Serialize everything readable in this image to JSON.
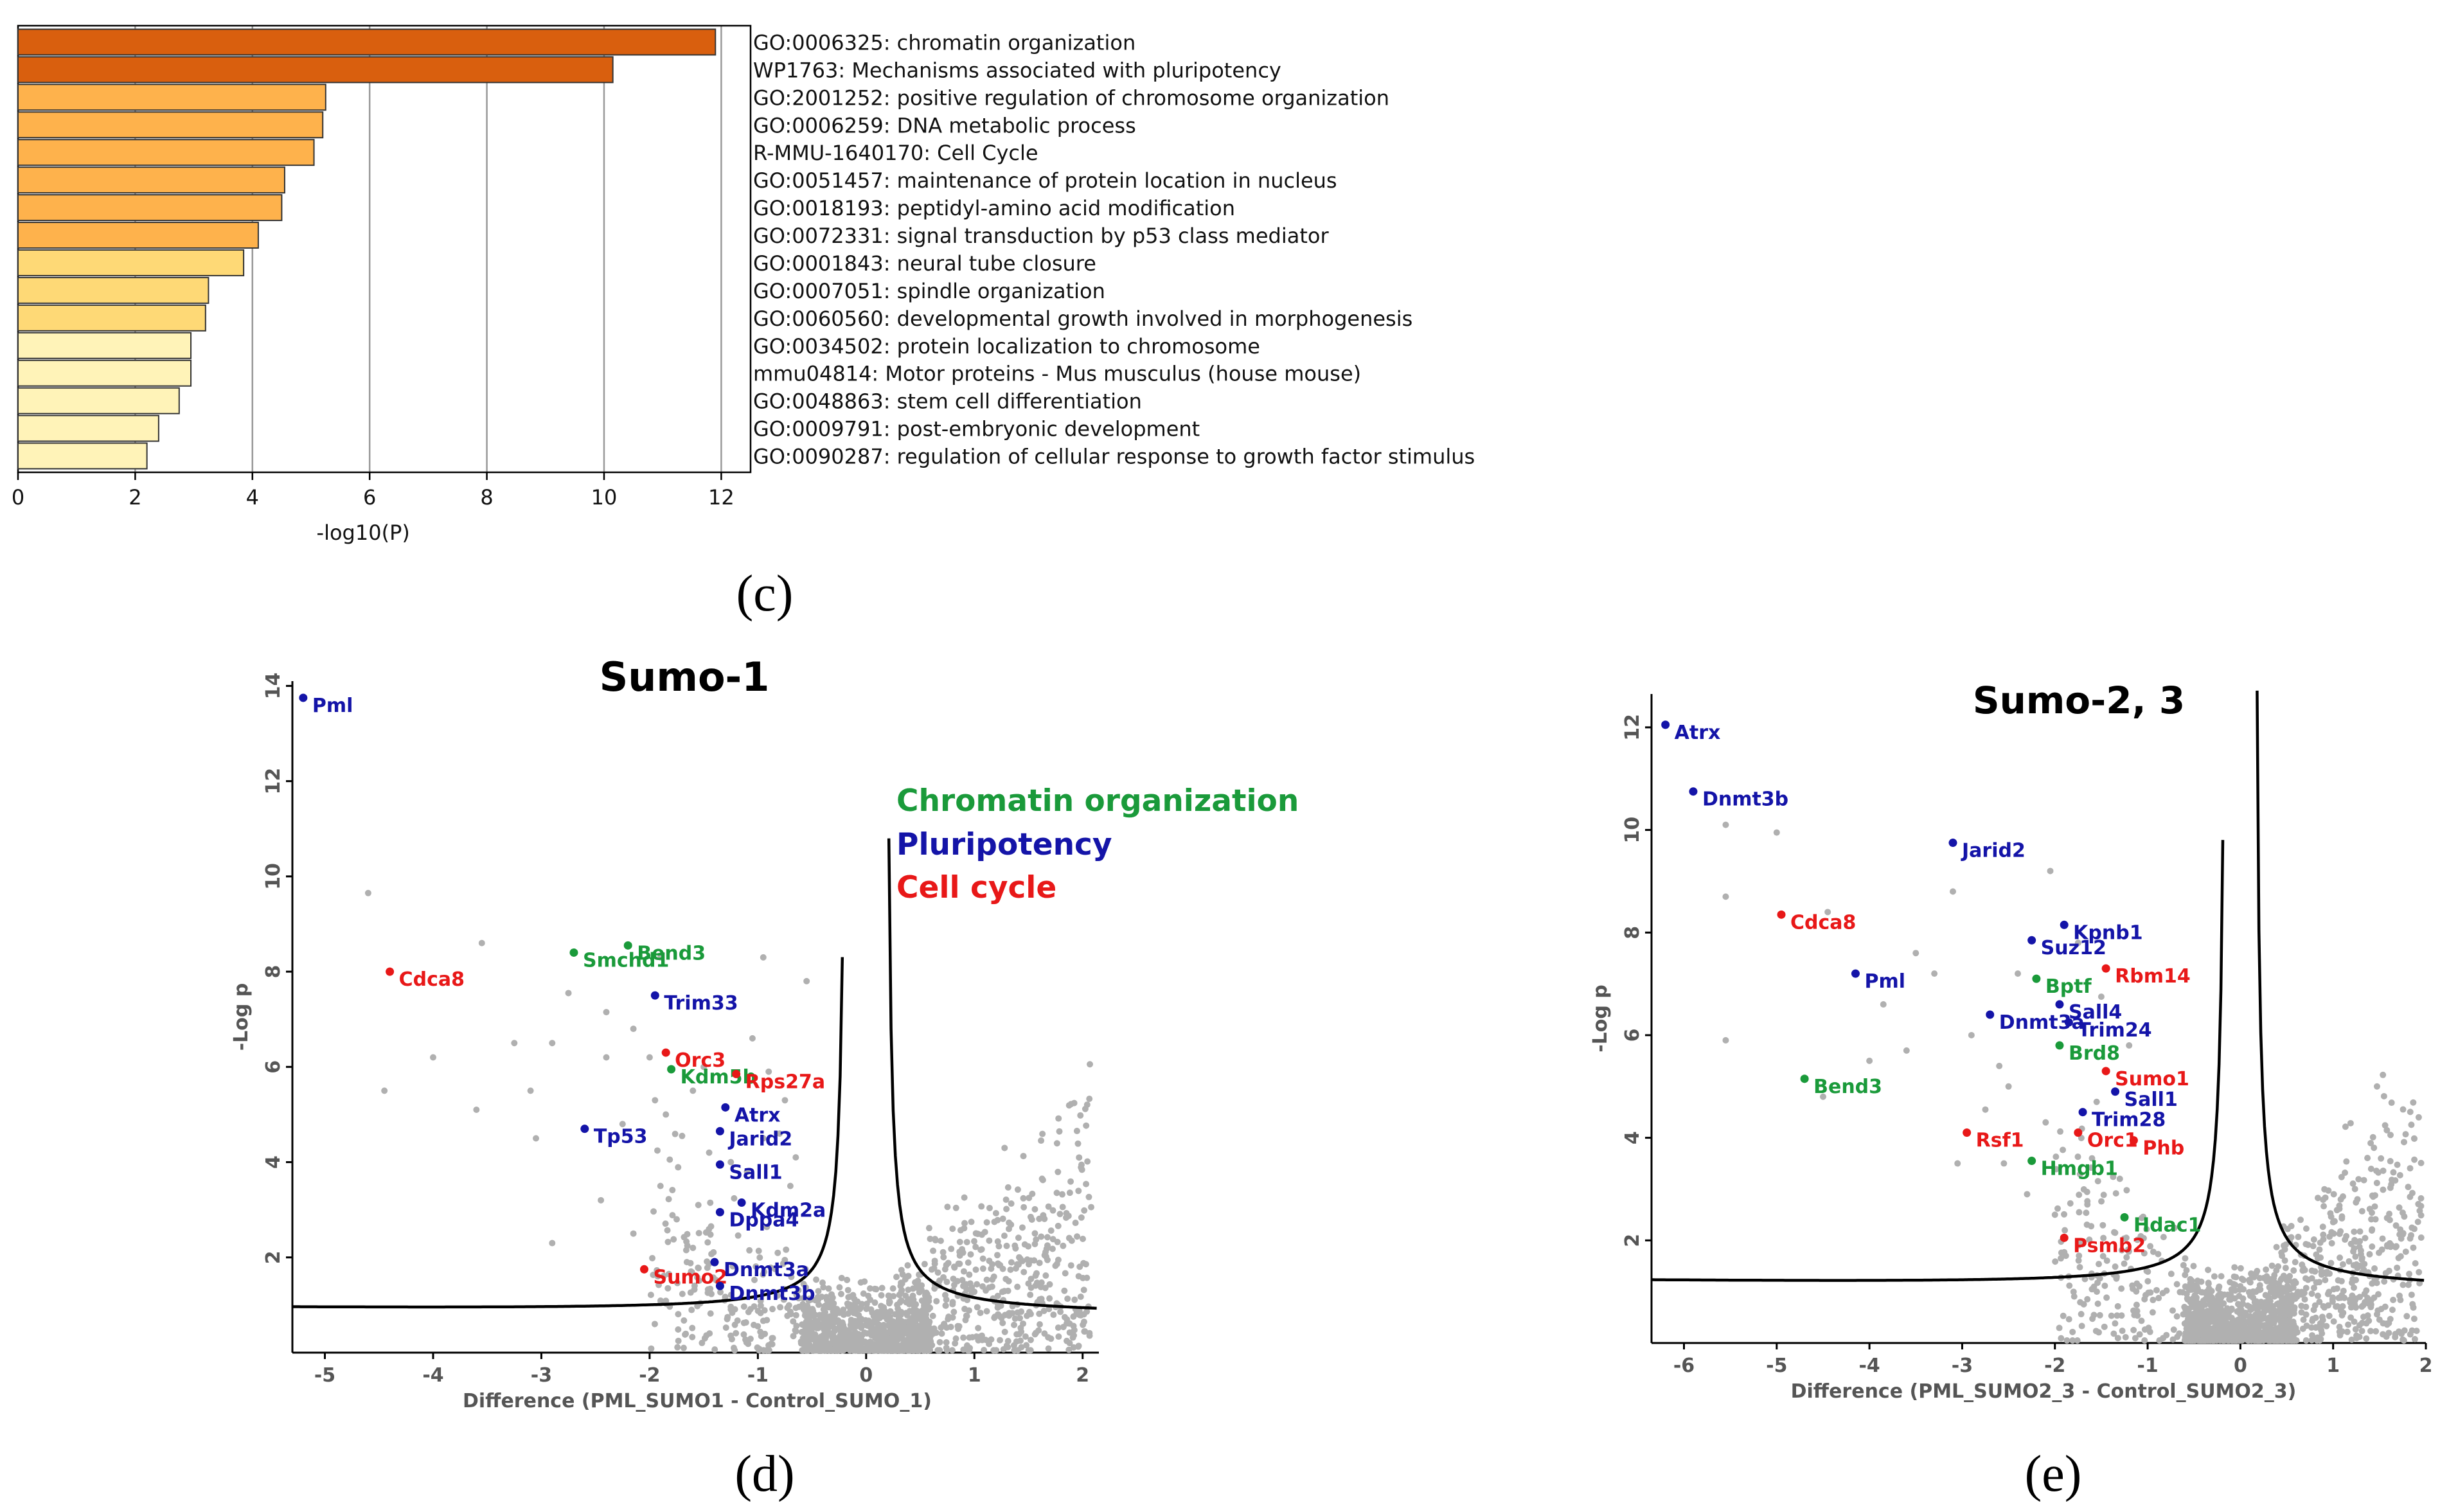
{
  "colors": {
    "bar_dark": "#D95F0E",
    "bar_mid": "#FEB24C",
    "bar_mid2": "#FED976",
    "bar_light": "#FFF3B8",
    "grid": "#9a9a9a",
    "green": "#1a9a3a",
    "blue": "#1414a8",
    "red": "#e81818",
    "gray_point": "#b0b0b0"
  },
  "chart_data": [
    {
      "id": "c",
      "type": "bar",
      "orientation": "horizontal",
      "panel_label": "(c)",
      "xlabel": "-log10(P)",
      "xlim": [
        0,
        12.5
      ],
      "xticks": [
        0,
        2,
        4,
        6,
        8,
        10,
        12
      ],
      "grid": true,
      "categories": [
        "GO:0006325: chromatin organization",
        "WP1763: Mechanisms associated with pluripotency",
        "GO:2001252: positive regulation of chromosome organization",
        "GO:0006259: DNA metabolic process",
        "R-MMU-1640170: Cell Cycle",
        "GO:0051457: maintenance of protein location in nucleus",
        "GO:0018193: peptidyl-amino acid modification",
        "GO:0072331: signal transduction by p53 class mediator",
        "GO:0001843: neural tube closure",
        "GO:0007051: spindle organization",
        "GO:0060560: developmental growth involved in morphogenesis",
        "GO:0034502: protein localization to chromosome",
        "mmu04814: Motor proteins - Mus musculus (house mouse)",
        "GO:0048863: stem cell differentiation",
        "GO:0009791: post-embryonic development",
        "GO:0090287: regulation of cellular response to growth factor stimulus"
      ],
      "values": [
        11.9,
        10.15,
        5.25,
        5.2,
        5.05,
        4.55,
        4.5,
        4.1,
        3.85,
        3.25,
        3.2,
        2.95,
        2.95,
        2.75,
        2.4,
        2.2
      ]
    },
    {
      "id": "d",
      "type": "scatter",
      "title": "Sumo-1",
      "panel_label": "(d)",
      "xlabel": "Difference (PML_SUMO1 - Control_SUMO_1)",
      "ylabel": "-Log p",
      "xlim": [
        -5.3,
        2.15
      ],
      "ylim": [
        0,
        14.1
      ],
      "xticks": [
        -5,
        -4,
        -3,
        -2,
        -1,
        0,
        1,
        2
      ],
      "yticks": [
        2,
        4,
        6,
        8,
        10,
        12,
        14
      ],
      "legend": [
        "Chromatin organization",
        "Pluripotency",
        "Cell cycle"
      ],
      "legend_cats": [
        "green",
        "blue",
        "red"
      ],
      "threshold": {
        "s0": 0.18,
        "c": 0.3,
        "base": 0.8
      },
      "highlighted": [
        {
          "label": "Pml",
          "x": -5.2,
          "y": 13.75,
          "cat": "blue"
        },
        {
          "label": "Cdca8",
          "x": -4.4,
          "y": 8.0,
          "cat": "red"
        },
        {
          "label": "Smchd1",
          "x": -2.7,
          "y": 8.4,
          "cat": "green"
        },
        {
          "label": "Bend3",
          "x": -2.2,
          "y": 8.55,
          "cat": "green"
        },
        {
          "label": "Trim33",
          "x": -1.95,
          "y": 7.5,
          "cat": "blue"
        },
        {
          "label": "Orc3",
          "x": -1.85,
          "y": 6.3,
          "cat": "red"
        },
        {
          "label": "Kdm5b",
          "x": -1.8,
          "y": 5.95,
          "cat": "green"
        },
        {
          "label": "Rps27a",
          "x": -1.2,
          "y": 5.85,
          "cat": "red"
        },
        {
          "label": "Tp53",
          "x": -2.6,
          "y": 4.7,
          "cat": "blue"
        },
        {
          "label": "Atrx",
          "x": -1.3,
          "y": 5.15,
          "cat": "blue"
        },
        {
          "label": "Jarid2",
          "x": -1.35,
          "y": 4.65,
          "cat": "blue"
        },
        {
          "label": "Sall1",
          "x": -1.35,
          "y": 3.95,
          "cat": "blue"
        },
        {
          "label": "Kdm2a",
          "x": -1.15,
          "y": 3.15,
          "cat": "blue"
        },
        {
          "label": "Dppa4",
          "x": -1.35,
          "y": 2.95,
          "cat": "blue"
        },
        {
          "label": "Sumo2",
          "x": -2.05,
          "y": 1.75,
          "cat": "red"
        },
        {
          "label": "Dnmt3a",
          "x": -1.4,
          "y": 1.9,
          "cat": "blue"
        },
        {
          "label": "Dnmt3b",
          "x": -1.35,
          "y": 1.4,
          "cat": "blue"
        }
      ],
      "background_points": [
        [
          -4.6,
          9.65
        ],
        [
          -3.55,
          8.6
        ],
        [
          -4.0,
          6.2
        ],
        [
          -4.45,
          5.5
        ],
        [
          -3.6,
          5.1
        ],
        [
          -3.25,
          6.5
        ],
        [
          -3.1,
          5.5
        ],
        [
          -2.9,
          6.5
        ],
        [
          -2.75,
          7.55
        ],
        [
          -3.05,
          4.5
        ],
        [
          -2.9,
          2.3
        ],
        [
          -2.4,
          7.15
        ],
        [
          -2.4,
          6.2
        ],
        [
          -2.25,
          4.8
        ],
        [
          -2.15,
          6.8
        ],
        [
          -2.0,
          6.2
        ],
        [
          -1.95,
          5.3
        ],
        [
          -1.85,
          5.0
        ],
        [
          -1.7,
          4.55
        ],
        [
          -1.6,
          5.5
        ],
        [
          -1.5,
          6.0
        ],
        [
          -1.45,
          4.2
        ],
        [
          -1.25,
          4.0
        ],
        [
          -1.1,
          3.8
        ],
        [
          -1.9,
          3.5
        ],
        [
          -1.55,
          3.1
        ],
        [
          -1.75,
          2.8
        ],
        [
          -1.6,
          2.2
        ],
        [
          -2.15,
          2.5
        ],
        [
          -0.95,
          8.3
        ],
        [
          -0.55,
          7.8
        ],
        [
          -1.05,
          6.6
        ],
        [
          -0.9,
          5.9
        ],
        [
          -0.75,
          5.3
        ],
        [
          -0.8,
          4.6
        ],
        [
          -0.65,
          4.1
        ],
        [
          -0.95,
          4.5
        ],
        [
          -2.45,
          3.2
        ],
        [
          -1.9,
          8.3
        ],
        [
          -0.7,
          3.5
        ]
      ]
    },
    {
      "id": "e",
      "type": "scatter",
      "title": "Sumo-2, 3",
      "panel_label": "(e)",
      "xlabel": "Difference (PML_SUMO2_3 - Control_SUMO2_3)",
      "ylabel": "-Log p",
      "xlim": [
        -6.35,
        2.0
      ],
      "ylim": [
        0,
        12.65
      ],
      "xticks": [
        -6,
        -5,
        -4,
        -3,
        -2,
        -1,
        0,
        1,
        2
      ],
      "yticks": [
        2,
        4,
        6,
        8,
        10,
        12
      ],
      "legend": [],
      "legend_cats": [],
      "threshold": {
        "s0": 0.15,
        "c": 0.35,
        "base": 1.05
      },
      "highlighted": [
        {
          "label": "Atrx",
          "x": -6.2,
          "y": 12.05,
          "cat": "blue"
        },
        {
          "label": "Dnmt3b",
          "x": -5.9,
          "y": 10.75,
          "cat": "blue"
        },
        {
          "label": "Jarid2",
          "x": -3.1,
          "y": 9.75,
          "cat": "blue"
        },
        {
          "label": "Cdca8",
          "x": -4.95,
          "y": 8.35,
          "cat": "red"
        },
        {
          "label": "Kpnb1",
          "x": -1.9,
          "y": 8.15,
          "cat": "blue"
        },
        {
          "label": "Suz12",
          "x": -2.25,
          "y": 7.85,
          "cat": "blue"
        },
        {
          "label": "Pml",
          "x": -4.15,
          "y": 7.2,
          "cat": "blue"
        },
        {
          "label": "Rbm14",
          "x": -1.45,
          "y": 7.3,
          "cat": "red"
        },
        {
          "label": "Bptf",
          "x": -2.2,
          "y": 7.1,
          "cat": "green"
        },
        {
          "label": "Sall4",
          "x": -1.95,
          "y": 6.6,
          "cat": "blue"
        },
        {
          "label": "Dnmt3a",
          "x": -2.7,
          "y": 6.4,
          "cat": "blue"
        },
        {
          "label": "Trim24",
          "x": -1.85,
          "y": 6.25,
          "cat": "blue"
        },
        {
          "label": "Brd8",
          "x": -1.95,
          "y": 5.8,
          "cat": "green"
        },
        {
          "label": "Sumo1",
          "x": -1.45,
          "y": 5.3,
          "cat": "red"
        },
        {
          "label": "Bend3",
          "x": -4.7,
          "y": 5.15,
          "cat": "green"
        },
        {
          "label": "Sall1",
          "x": -1.35,
          "y": 4.9,
          "cat": "blue"
        },
        {
          "label": "Trim28",
          "x": -1.7,
          "y": 4.5,
          "cat": "blue"
        },
        {
          "label": "Rsf1",
          "x": -2.95,
          "y": 4.1,
          "cat": "red"
        },
        {
          "label": "Orc1",
          "x": -1.75,
          "y": 4.1,
          "cat": "red"
        },
        {
          "label": "Phb",
          "x": -1.15,
          "y": 3.95,
          "cat": "red"
        },
        {
          "label": "Hmgb1",
          "x": -2.25,
          "y": 3.55,
          "cat": "green"
        },
        {
          "label": "Hdac1",
          "x": -1.25,
          "y": 2.45,
          "cat": "green"
        },
        {
          "label": "Psmb2",
          "x": -1.9,
          "y": 2.05,
          "cat": "red"
        }
      ],
      "background_points": [
        [
          -5.55,
          10.1
        ],
        [
          -5.0,
          9.95
        ],
        [
          -5.55,
          8.7
        ],
        [
          -4.45,
          8.4
        ],
        [
          -5.55,
          5.9
        ],
        [
          -4.5,
          4.8
        ],
        [
          -3.85,
          6.6
        ],
        [
          -3.6,
          5.7
        ],
        [
          -3.1,
          8.8
        ],
        [
          -3.3,
          7.2
        ],
        [
          -2.9,
          6.0
        ],
        [
          -2.6,
          5.4
        ],
        [
          -2.4,
          7.2
        ],
        [
          -2.5,
          5.0
        ],
        [
          -2.75,
          4.55
        ],
        [
          -3.05,
          3.5
        ],
        [
          -2.55,
          3.5
        ],
        [
          -2.05,
          9.2
        ],
        [
          -1.75,
          7.8
        ],
        [
          -1.5,
          6.75
        ],
        [
          -2.1,
          4.3
        ],
        [
          -1.55,
          4.7
        ],
        [
          -1.6,
          3.6
        ],
        [
          -2.3,
          2.9
        ],
        [
          -2.0,
          2.5
        ],
        [
          -1.65,
          2.7
        ],
        [
          -1.3,
          3.2
        ],
        [
          -3.5,
          7.6
        ],
        [
          -4.0,
          5.5
        ],
        [
          -1.2,
          5.8
        ]
      ]
    }
  ]
}
